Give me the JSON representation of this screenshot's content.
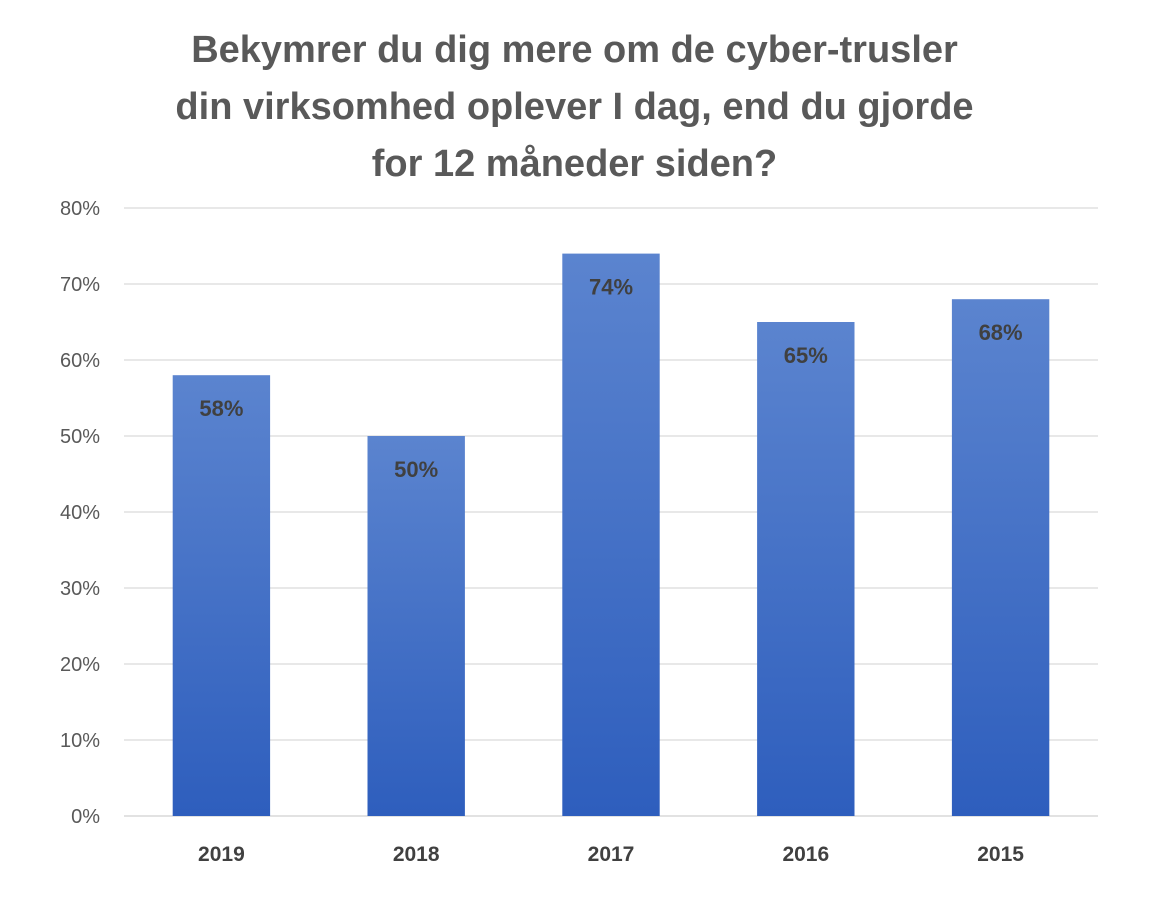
{
  "chart_data": {
    "type": "bar",
    "title_lines": [
      "Bekymrer du dig mere om de cyber-trusler",
      "din virksomhed oplever I dag, end du gjorde",
      "for 12 måneder siden?"
    ],
    "categories": [
      "2019",
      "2018",
      "2017",
      "2016",
      "2015"
    ],
    "values": [
      58,
      50,
      74,
      65,
      68
    ],
    "data_labels": [
      "58%",
      "50%",
      "74%",
      "65%",
      "68%"
    ],
    "yticks": [
      0,
      10,
      20,
      30,
      40,
      50,
      60,
      70,
      80
    ],
    "ytick_labels": [
      "0%",
      "10%",
      "20%",
      "30%",
      "40%",
      "50%",
      "60%",
      "70%",
      "80%"
    ],
    "ylim": [
      0,
      80
    ],
    "grid": true,
    "legend": "none",
    "colors": {
      "bar_top": "#5b84cf",
      "bar_bottom": "#2e5ebd",
      "grid": "#d9d9d9",
      "axis": "#d9d9d9"
    }
  }
}
